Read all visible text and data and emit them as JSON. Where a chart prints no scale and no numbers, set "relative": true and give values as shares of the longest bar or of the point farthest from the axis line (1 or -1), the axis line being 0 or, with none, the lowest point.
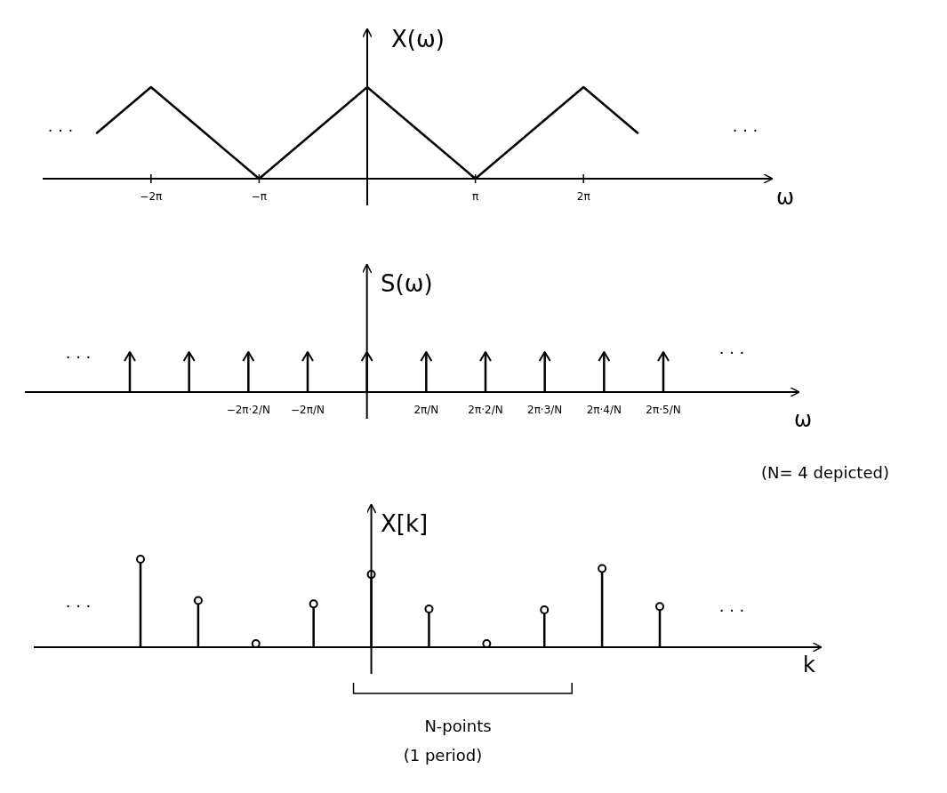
{
  "chart_data": [
    {
      "type": "line",
      "relative": true,
      "ylabel": "X(ω)",
      "xlabel": "ω",
      "categories": [
        null,
        "−2π",
        null,
        "−π",
        null,
        null,
        null,
        "π",
        null,
        "2π",
        null
      ],
      "values": [
        0.5,
        1,
        0.5,
        0,
        0.5,
        1,
        0.5,
        0,
        0.5,
        1,
        0.5
      ],
      "color": "#000000",
      "tick_labels": "x",
      "annotations": [
        "· · ·",
        "· · ·"
      ]
    },
    {
      "type": "bar",
      "relative": true,
      "marker": "triangle",
      "ylabel": "S(ω)",
      "xlabel": "ω",
      "categories": [
        null,
        null,
        "−2π·2/N",
        "−2π/N",
        null,
        "2π/N",
        "2π·2/N",
        "2π·3/N",
        "2π·4/N",
        "2π·5/N"
      ],
      "values": [
        1,
        1,
        1,
        1,
        1,
        1,
        1,
        1,
        1,
        1
      ],
      "color": "#000000",
      "tick_labels": "x",
      "annotations": [
        "· · ·",
        "· · ·",
        "(N= 4 depicted)"
      ]
    },
    {
      "type": "bar",
      "relative": true,
      "marker": "circle",
      "ylabel": "X[k]",
      "xlabel": "k",
      "categories": [
        null,
        null,
        null,
        null,
        null,
        null,
        null,
        null,
        null,
        null
      ],
      "values": [
        1,
        0.51,
        0,
        0.47,
        0.82,
        0.41,
        0,
        0.4,
        0.89,
        0.44
      ],
      "color": "#000000",
      "tick_labels": false,
      "annotations": [
        "· · ·",
        "· · ·",
        "N-points",
        "(1 period)"
      ]
    }
  ]
}
